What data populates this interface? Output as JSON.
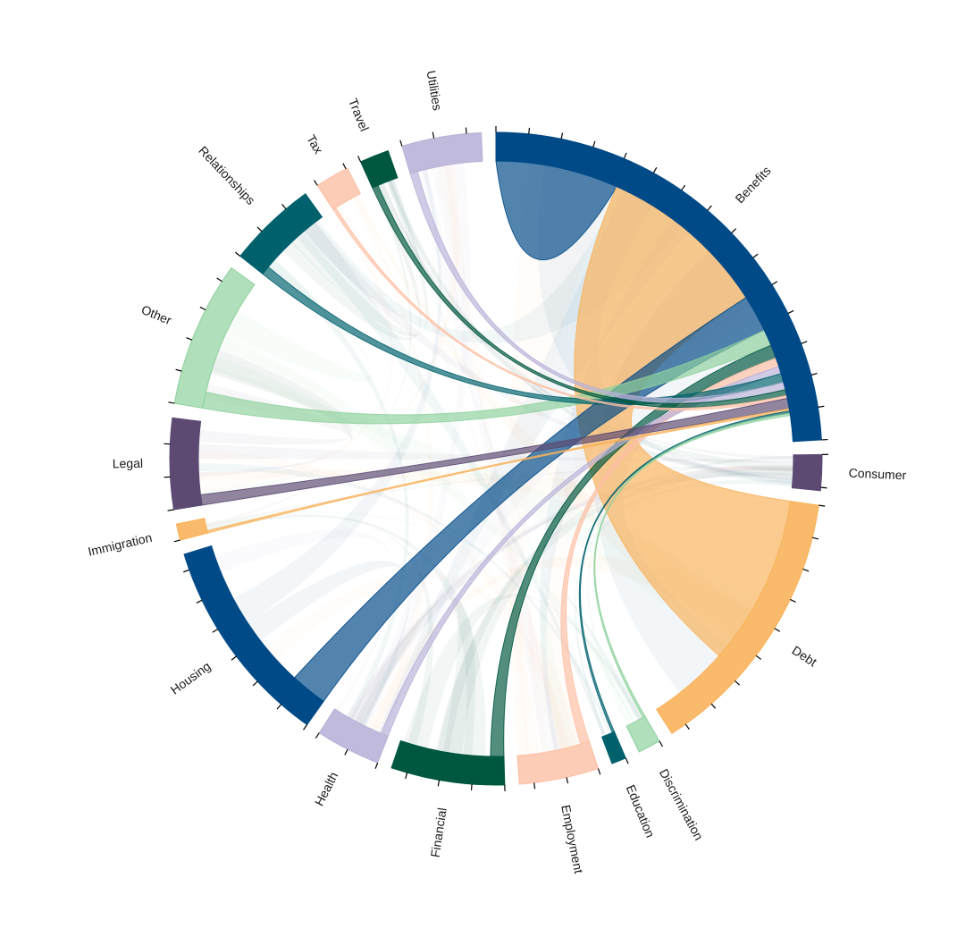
{
  "chart_data": {
    "type": "chord",
    "title": "",
    "groups": [
      {
        "name": "Benefits",
        "value": 30.0,
        "color": "#004a87",
        "fill_opacity": 1.0
      },
      {
        "name": "Consumer",
        "value": 2.2,
        "color": "#5c4a72",
        "fill_opacity": 1.0
      },
      {
        "name": "Debt",
        "value": 17.0,
        "color": "#f9b35b",
        "fill_opacity": 0.9
      },
      {
        "name": "Discrimination",
        "value": 1.4,
        "color": "#8fd19e",
        "fill_opacity": 0.7
      },
      {
        "name": "Education",
        "value": 0.9,
        "color": "#00616d",
        "fill_opacity": 1.0
      },
      {
        "name": "Employment",
        "value": 4.9,
        "color": "#fdbfa4",
        "fill_opacity": 0.8
      },
      {
        "name": "Financial",
        "value": 7.0,
        "color": "#00573f",
        "fill_opacity": 1.0
      },
      {
        "name": "Health",
        "value": 4.0,
        "color": "#b9b2d8",
        "fill_opacity": 0.9
      },
      {
        "name": "Housing",
        "value": 13.0,
        "color": "#004a87",
        "fill_opacity": 1.0
      },
      {
        "name": "Immigration",
        "value": 1.0,
        "color": "#f9b35b",
        "fill_opacity": 0.9
      },
      {
        "name": "Legal",
        "value": 5.6,
        "color": "#5c4a72",
        "fill_opacity": 1.0
      },
      {
        "name": "Other",
        "value": 9.0,
        "color": "#8fd19e",
        "fill_opacity": 0.7
      },
      {
        "name": "Relationships",
        "value": 5.5,
        "color": "#00616d",
        "fill_opacity": 1.0
      },
      {
        "name": "Tax",
        "value": 2.1,
        "color": "#fdbfa4",
        "fill_opacity": 0.8
      },
      {
        "name": "Travel",
        "value": 1.8,
        "color": "#00573f",
        "fill_opacity": 1.0
      },
      {
        "name": "Utilities",
        "value": 4.9,
        "color": "#b9b2d8",
        "fill_opacity": 0.9
      }
    ],
    "flows": [
      {
        "source": "Benefits",
        "target": "Benefits",
        "value": 8.3
      },
      {
        "source": "Benefits",
        "target": "Debt",
        "value": 11.5
      },
      {
        "source": "Benefits",
        "target": "Housing",
        "value": 2.5
      },
      {
        "source": "Benefits",
        "target": "Other",
        "value": 1.1
      },
      {
        "source": "Benefits",
        "target": "Financial",
        "value": 0.9
      },
      {
        "source": "Benefits",
        "target": "Employment",
        "value": 0.6
      },
      {
        "source": "Benefits",
        "target": "Health",
        "value": 0.5
      },
      {
        "source": "Benefits",
        "target": "Relationships",
        "value": 0.6
      },
      {
        "source": "Benefits",
        "target": "Utilities",
        "value": 0.5
      },
      {
        "source": "Benefits",
        "target": "Travel",
        "value": 0.4
      },
      {
        "source": "Benefits",
        "target": "Tax",
        "value": 0.2
      },
      {
        "source": "Benefits",
        "target": "Legal",
        "value": 0.7
      },
      {
        "source": "Benefits",
        "target": "Immigration",
        "value": 0.15
      },
      {
        "source": "Benefits",
        "target": "Education",
        "value": 0.15
      },
      {
        "source": "Benefits",
        "target": "Discrimination",
        "value": 0.15
      }
    ],
    "has_axis_ticks": true,
    "legend": "none"
  }
}
